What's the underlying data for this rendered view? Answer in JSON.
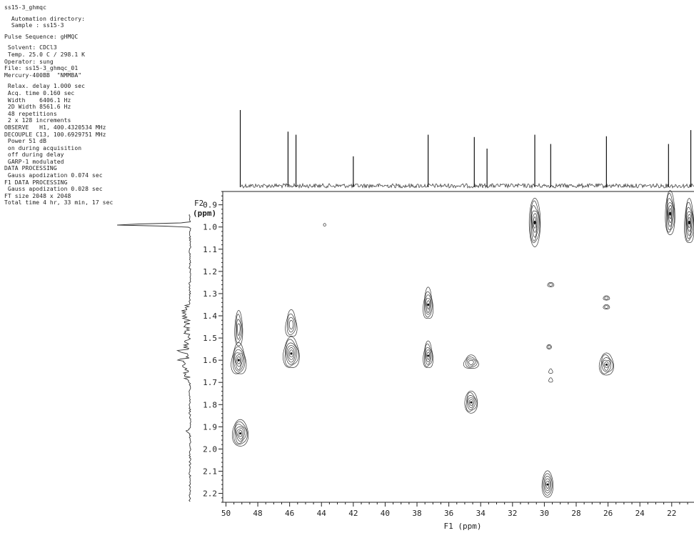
{
  "header": {
    "title": "ss15-3_ghmqc",
    "lines": [
      {
        "text": "  Automation directory:",
        "gap_before": true
      },
      {
        "text": "  Sample : ss15-3"
      },
      {
        "text": "Pulse Sequence: gHMQC",
        "gap_before": true
      },
      {
        "text": " Solvent: CDCl3",
        "gap_before": true
      },
      {
        "text": " Temp. 25.0 C / 298.1 K"
      },
      {
        "text": "Operator: sung"
      },
      {
        "text": "File: ss15-3_ghmqc_01"
      },
      {
        "text": "Mercury-400BB  \"NMMBA\""
      },
      {
        "text": " Relax. delay 1.000 sec",
        "gap_before": true
      },
      {
        "text": " Acq. time 0.160 sec"
      },
      {
        "text": " Width    6406.1 Hz"
      },
      {
        "text": " 2D Width 8561.6 Hz"
      },
      {
        "text": " 48 repetitions"
      },
      {
        "text": " 2 x 128 increments"
      },
      {
        "text": "OBSERVE   H1, 400.4320534 MHz"
      },
      {
        "text": "DECOUPLE C13, 100.6929751 MHz"
      },
      {
        "text": " Power 51 dB"
      },
      {
        "text": " on during acquisition"
      },
      {
        "text": " off during delay"
      },
      {
        "text": " GARP-1 modulated"
      },
      {
        "text": "DATA PROCESSING"
      },
      {
        "text": " Gauss apodization 0.074 sec"
      },
      {
        "text": "F1 DATA PROCESSING"
      },
      {
        "text": " Gauss apodization 0.028 sec"
      },
      {
        "text": "FT size 2048 x 2048"
      },
      {
        "text": "Total time 4 hr, 33 min, 17 sec"
      }
    ]
  },
  "chart_data": {
    "type": "heatmap",
    "subtype": "2D NMR contour plot (gHMQC) with 1D projections",
    "xlabel": "F1 (ppm)",
    "ylabel_line1": "F2",
    "ylabel_line2": "(ppm)",
    "x_axis": {
      "reversed": true,
      "range": [
        50.2,
        20.6
      ],
      "major_ticks": [
        50,
        48,
        46,
        44,
        42,
        40,
        38,
        36,
        34,
        32,
        30,
        28,
        26,
        24,
        22
      ],
      "minor_step": 0.5
    },
    "y_axis": {
      "reversed": true,
      "range": [
        0.84,
        2.24
      ],
      "major_ticks": [
        0.9,
        1.0,
        1.1,
        1.2,
        1.3,
        1.4,
        1.5,
        1.6,
        1.7,
        1.8,
        1.9,
        2.0,
        2.1,
        2.2
      ],
      "tick_labels": [
        "0.9",
        "1.0",
        "1.1",
        "1.2",
        "1.3",
        "1.4",
        "1.5",
        "1.6",
        "1.7",
        "1.8",
        "1.9",
        "2.0",
        "2.1",
        "2.2"
      ],
      "minor_step": 0.02
    },
    "grid": false,
    "legend": "none",
    "contour_color": "#333333",
    "top_projection_peaks_c13": [
      {
        "ppm": 49.1,
        "h": 1.0
      },
      {
        "ppm": 46.1,
        "h": 0.72
      },
      {
        "ppm": 45.6,
        "h": 0.68
      },
      {
        "ppm": 42.0,
        "h": 0.4
      },
      {
        "ppm": 37.3,
        "h": 0.68
      },
      {
        "ppm": 34.4,
        "h": 0.65
      },
      {
        "ppm": 33.6,
        "h": 0.5
      },
      {
        "ppm": 30.6,
        "h": 0.68
      },
      {
        "ppm": 29.6,
        "h": 0.56
      },
      {
        "ppm": 26.1,
        "h": 0.66
      },
      {
        "ppm": 22.2,
        "h": 0.56
      },
      {
        "ppm": 20.8,
        "h": 0.74
      }
    ],
    "left_projection_peaks_h1": [
      {
        "ppm": 0.93,
        "h": 0.82
      },
      {
        "ppm": 0.99,
        "h": 1.0
      },
      {
        "ppm": 1.38,
        "h": 0.06
      },
      {
        "ppm": 1.56,
        "h": 0.12
      },
      {
        "ppm": 1.6,
        "h": 0.1
      },
      {
        "ppm": 1.63,
        "h": 0.09
      },
      {
        "ppm": 1.92,
        "h": 0.05
      }
    ],
    "cross_peaks": [
      {
        "f1": 30.6,
        "f2": 0.98,
        "w": 0.35,
        "h": 0.11,
        "levels": 6
      },
      {
        "f1": 22.1,
        "f2": 0.94,
        "w": 0.3,
        "h": 0.1,
        "levels": 6
      },
      {
        "f1": 20.9,
        "f2": 0.98,
        "w": 0.3,
        "h": 0.1,
        "levels": 6
      },
      {
        "f1": 49.2,
        "f2": 1.6,
        "w": 0.45,
        "h": 0.07,
        "levels": 6
      },
      {
        "f1": 49.2,
        "f2": 1.46,
        "w": 0.25,
        "h": 0.08,
        "levels": 4
      },
      {
        "f1": 49.1,
        "f2": 1.93,
        "w": 0.5,
        "h": 0.06,
        "levels": 6
      },
      {
        "f1": 45.9,
        "f2": 1.57,
        "w": 0.5,
        "h": 0.07,
        "levels": 6
      },
      {
        "f1": 45.9,
        "f2": 1.44,
        "w": 0.35,
        "h": 0.06,
        "levels": 4
      },
      {
        "f1": 37.3,
        "f2": 1.35,
        "w": 0.3,
        "h": 0.07,
        "levels": 5
      },
      {
        "f1": 37.3,
        "f2": 1.58,
        "w": 0.3,
        "h": 0.06,
        "levels": 5
      },
      {
        "f1": 34.6,
        "f2": 1.61,
        "w": 0.45,
        "h": 0.03,
        "levels": 4
      },
      {
        "f1": 34.6,
        "f2": 1.79,
        "w": 0.4,
        "h": 0.05,
        "levels": 5
      },
      {
        "f1": 29.8,
        "f2": 2.16,
        "w": 0.35,
        "h": 0.06,
        "levels": 5
      },
      {
        "f1": 26.1,
        "f2": 1.62,
        "w": 0.45,
        "h": 0.05,
        "levels": 5
      },
      {
        "f1": 26.1,
        "f2": 1.32,
        "w": 0.2,
        "h": 0.01,
        "levels": 2
      },
      {
        "f1": 26.1,
        "f2": 1.36,
        "w": 0.2,
        "h": 0.01,
        "levels": 2
      },
      {
        "f1": 29.6,
        "f2": 1.26,
        "w": 0.2,
        "h": 0.01,
        "levels": 2
      },
      {
        "f1": 29.7,
        "f2": 1.54,
        "w": 0.15,
        "h": 0.01,
        "levels": 2
      },
      {
        "f1": 29.6,
        "f2": 1.65,
        "w": 0.12,
        "h": 0.01,
        "levels": 1
      },
      {
        "f1": 29.6,
        "f2": 1.69,
        "w": 0.12,
        "h": 0.01,
        "levels": 1
      },
      {
        "f1": 43.8,
        "f2": 0.99,
        "w": 0.08,
        "h": 0.006,
        "levels": 1
      }
    ]
  }
}
